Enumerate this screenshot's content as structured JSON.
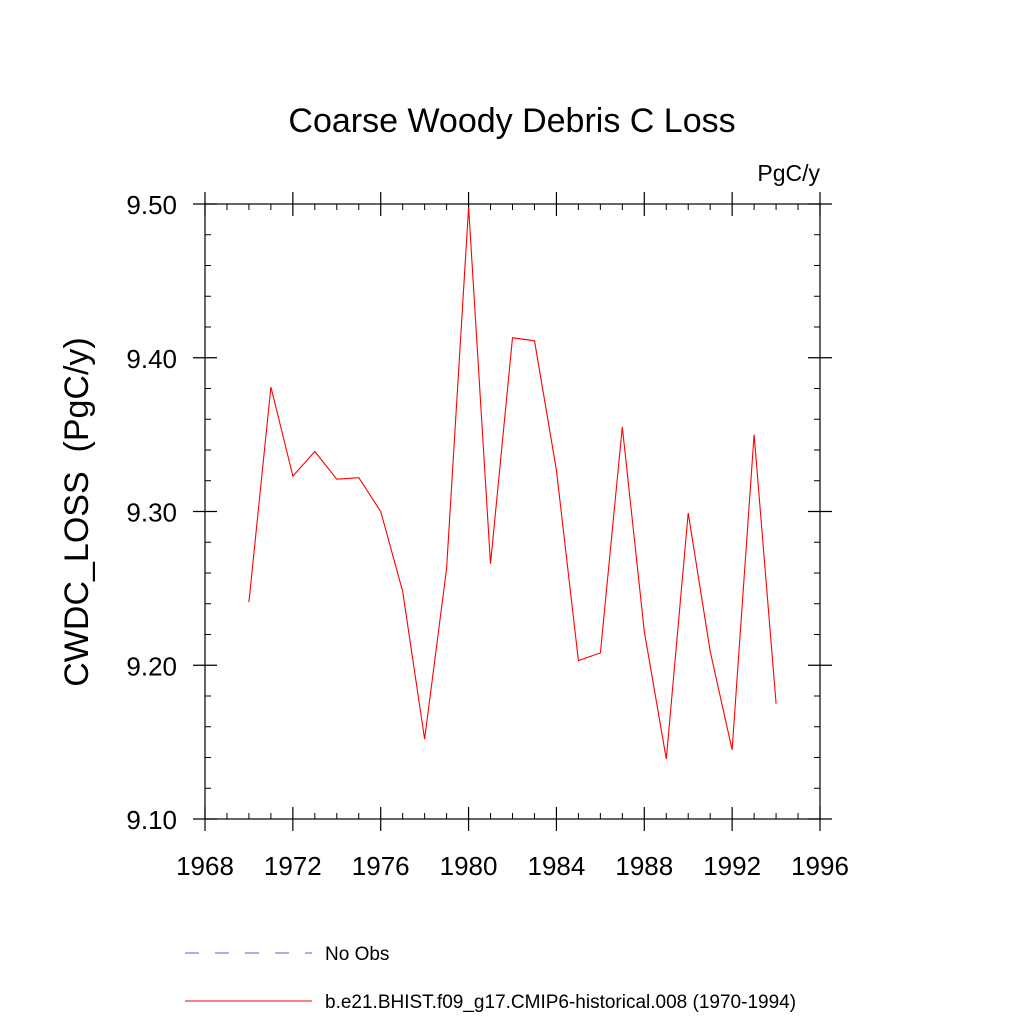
{
  "chart_data": {
    "type": "line",
    "title": "Coarse Woody Debris C Loss",
    "units": "PgC/y",
    "xlabel": "",
    "ylabel": "CWDC_LOSS  (PgC/y)",
    "xlim": [
      1968,
      1996
    ],
    "ylim": [
      9.1,
      9.5
    ],
    "x_ticks": [
      1968,
      1972,
      1976,
      1980,
      1984,
      1988,
      1992,
      1996
    ],
    "x_tick_labels": [
      "1968",
      "1972",
      "1976",
      "1980",
      "1984",
      "1988",
      "1992",
      "1996"
    ],
    "y_ticks": [
      9.1,
      9.2,
      9.3,
      9.4,
      9.5
    ],
    "y_tick_labels": [
      "9.10",
      "9.20",
      "9.30",
      "9.40",
      "9.50"
    ],
    "x_minor_step": 1,
    "y_minor_step": 0.02,
    "grid": false,
    "x": [
      1970,
      1971,
      1972,
      1973,
      1974,
      1975,
      1976,
      1977,
      1978,
      1979,
      1980,
      1981,
      1982,
      1983,
      1984,
      1985,
      1986,
      1987,
      1988,
      1989,
      1990,
      1991,
      1992,
      1993,
      1994
    ],
    "series": [
      {
        "name": "b.e21.BHIST.f09_g17.CMIP6-historical.008 (1970-1994)",
        "color": "#ff0000",
        "style": "solid",
        "values": [
          9.241,
          9.381,
          9.323,
          9.339,
          9.321,
          9.322,
          9.3,
          9.248,
          9.152,
          9.263,
          9.498,
          9.266,
          9.413,
          9.411,
          9.327,
          9.203,
          9.208,
          9.355,
          9.222,
          9.139,
          9.299,
          9.209,
          9.145,
          9.35,
          9.175
        ]
      }
    ],
    "legend": [
      {
        "label": "No Obs",
        "color": "#6a5acd",
        "style": "dashed"
      },
      {
        "label": "b.e21.BHIST.f09_g17.CMIP6-historical.008 (1970-1994)",
        "color": "#ff0000",
        "style": "solid"
      }
    ],
    "legend_position": "bottom"
  }
}
